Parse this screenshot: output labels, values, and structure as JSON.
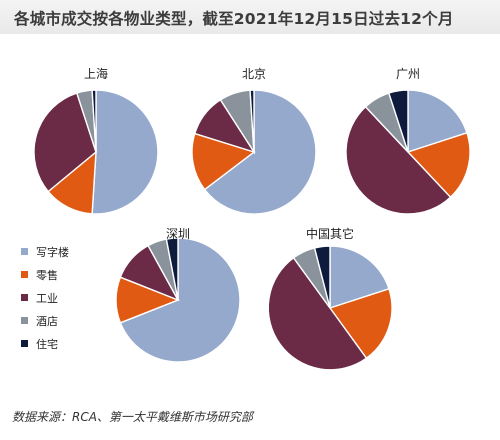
{
  "title": "各城市成交按各物业类型，截至2021年12月15日过去12个月",
  "source": "数据来源：RCA、第一太平戴维斯市场研究部",
  "colors": {
    "写字楼": "#95a9cc",
    "零售": "#e05a14",
    "工业": "#6b2a46",
    "酒店": "#8a929b",
    "住宅": "#0e1b3d"
  },
  "chart_data": [
    {
      "type": "pie",
      "title": "上海",
      "categories": [
        "写字楼",
        "零售",
        "工业",
        "酒店",
        "住宅"
      ],
      "values": [
        51,
        13,
        31,
        4,
        1
      ]
    },
    {
      "type": "pie",
      "title": "北京",
      "categories": [
        "写字楼",
        "零售",
        "工业",
        "酒店",
        "住宅"
      ],
      "values": [
        64,
        15,
        11,
        8,
        1
      ]
    },
    {
      "type": "pie",
      "title": "广州",
      "categories": [
        "写字楼",
        "零售",
        "工业",
        "酒店",
        "住宅"
      ],
      "values": [
        20,
        18,
        50,
        7,
        5
      ]
    },
    {
      "type": "pie",
      "title": "深圳",
      "categories": [
        "写字楼",
        "零售",
        "工业",
        "酒店",
        "住宅"
      ],
      "values": [
        69,
        12,
        11,
        5,
        3
      ]
    },
    {
      "type": "pie",
      "title": "中国其它",
      "categories": [
        "写字楼",
        "零售",
        "工业",
        "酒店",
        "住宅"
      ],
      "values": [
        20,
        20,
        50,
        6,
        4
      ]
    }
  ],
  "legend": {
    "items": [
      {
        "label": "写字楼",
        "key": "写字楼"
      },
      {
        "label": "零售",
        "key": "零售"
      },
      {
        "label": "工业",
        "key": "工业"
      },
      {
        "label": "酒店",
        "key": "酒店"
      },
      {
        "label": "住宅",
        "key": "住宅"
      }
    ]
  }
}
